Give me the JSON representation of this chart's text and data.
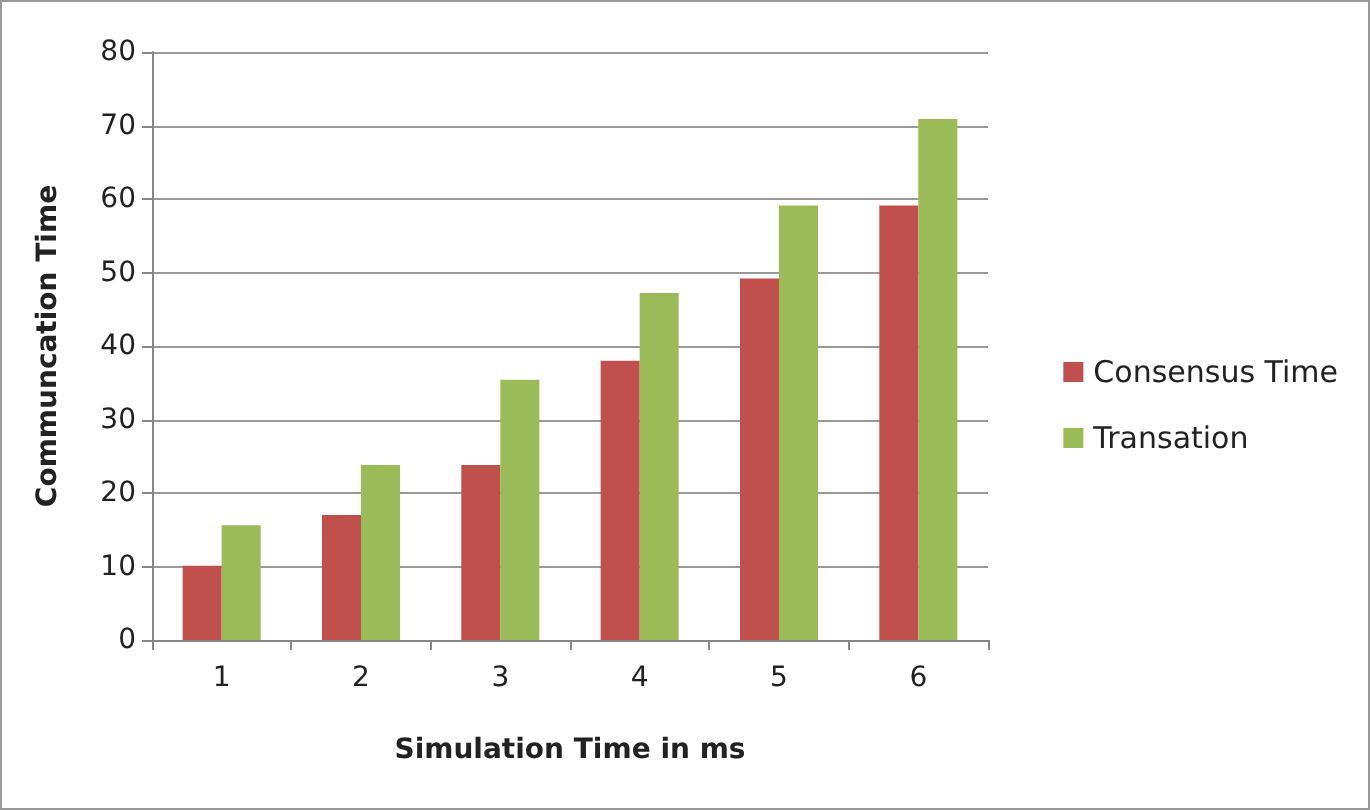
{
  "chart_data": {
    "type": "bar",
    "xlabel": "Simulation Time in ms",
    "ylabel": "Communcation Time",
    "categories": [
      "1",
      "2",
      "3",
      "4",
      "5",
      "6"
    ],
    "series": [
      {
        "name": "Consensus Time",
        "color": "#c0504d",
        "values": [
          10.1,
          17,
          23.8,
          38,
          49.2,
          59.1
        ]
      },
      {
        "name": "Transation",
        "color": "#9bbb59",
        "values": [
          15.6,
          23.8,
          35.4,
          47.2,
          59.1,
          70.9
        ]
      }
    ],
    "ylim": [
      0,
      80
    ],
    "yticks": [
      0,
      10,
      20,
      30,
      40,
      50,
      60,
      70,
      80
    ],
    "grid": "y",
    "legend": "right"
  }
}
